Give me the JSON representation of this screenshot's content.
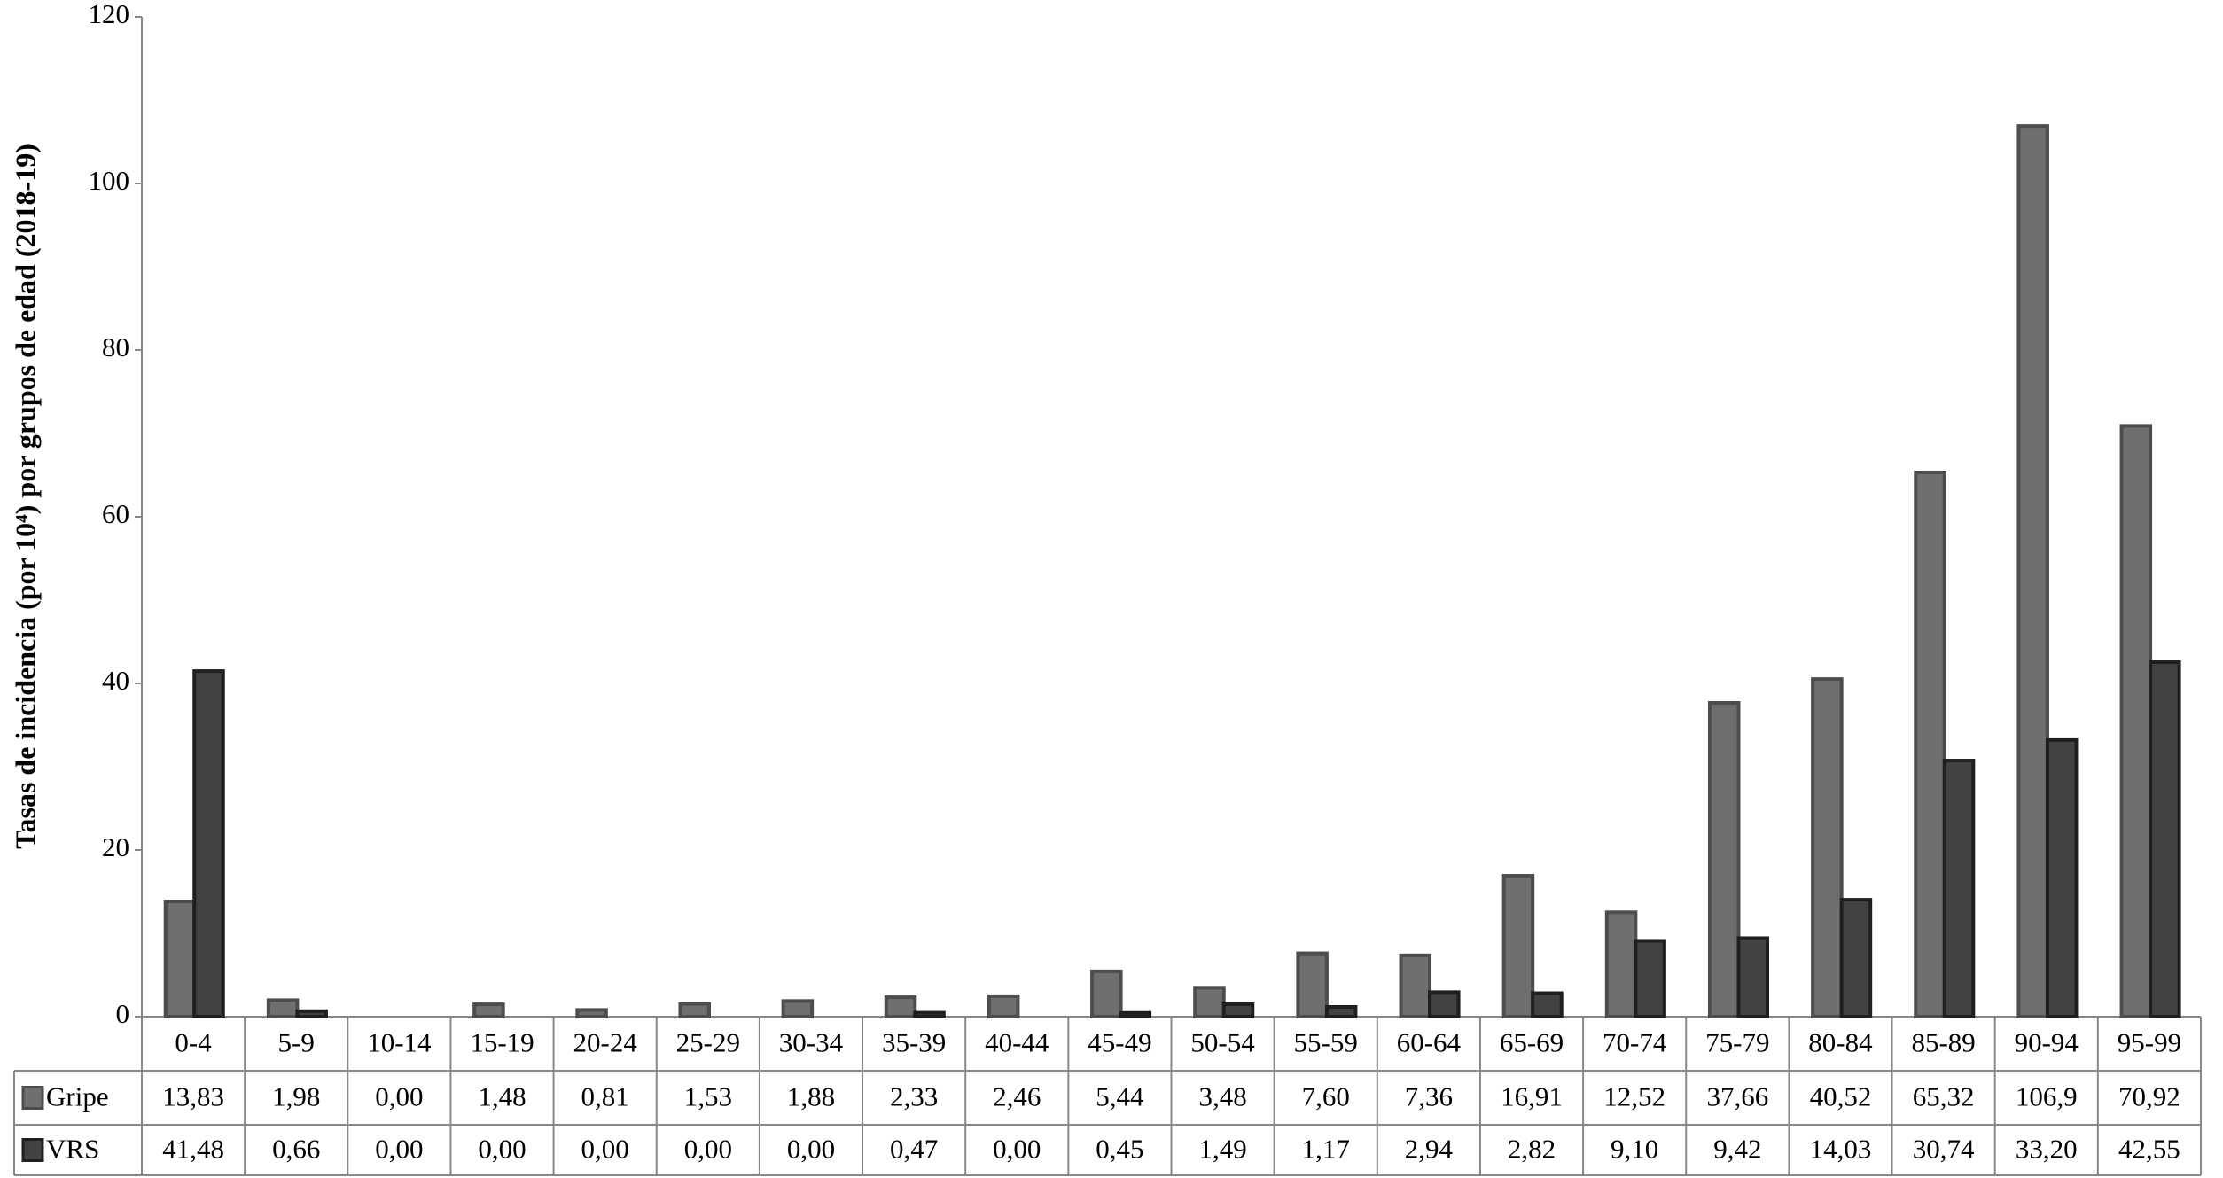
{
  "chart_data": {
    "type": "bar",
    "ylabel": "Tasas de incidencia  (por 10⁴) por grupos de edad (2018-19)",
    "categories": [
      "0-4",
      "5-9",
      "10-14",
      "15-19",
      "20-24",
      "25-29",
      "30-34",
      "35-39",
      "40-44",
      "45-49",
      "50-54",
      "55-59",
      "60-64",
      "65-69",
      "70-74",
      "75-79",
      "80-84",
      "85-89",
      "90-94",
      "95-99"
    ],
    "series": [
      {
        "name": "Gripe",
        "color": "#6f6f6f",
        "stroke": "#4d4d4d",
        "values": [
          13.83,
          1.98,
          0,
          1.48,
          0.81,
          1.53,
          1.88,
          2.33,
          2.46,
          5.44,
          3.48,
          7.6,
          7.36,
          16.91,
          12.52,
          37.66,
          40.52,
          65.32,
          106.9,
          70.92
        ],
        "value_labels": [
          "13,83",
          "1,98",
          "0,00",
          "1,48",
          "0,81",
          "1,53",
          "1,88",
          "2,33",
          "2,46",
          "5,44",
          "3,48",
          "7,60",
          "7,36",
          "16,91",
          "12,52",
          "37,66",
          "40,52",
          "65,32",
          "106,9",
          "70,92"
        ]
      },
      {
        "name": "VRS",
        "color": "#424242",
        "stroke": "#1f1f1f",
        "values": [
          41.48,
          0.66,
          0,
          0,
          0,
          0,
          0,
          0.47,
          0,
          0.45,
          1.49,
          1.17,
          2.94,
          2.82,
          9.1,
          9.42,
          14.03,
          30.74,
          33.2,
          42.55
        ],
        "value_labels": [
          "41,48",
          "0,66",
          "0,00",
          "0,00",
          "0,00",
          "0,00",
          "0,00",
          "0,47",
          "0,00",
          "0,45",
          "1,49",
          "1,17",
          "2,94",
          "2,82",
          "9,10",
          "9,42",
          "14,03",
          "30,74",
          "33,20",
          "42,55"
        ]
      }
    ],
    "ylim": [
      0,
      120
    ],
    "yticks": [
      0,
      20,
      40,
      60,
      80,
      100,
      120
    ],
    "grid": false
  }
}
